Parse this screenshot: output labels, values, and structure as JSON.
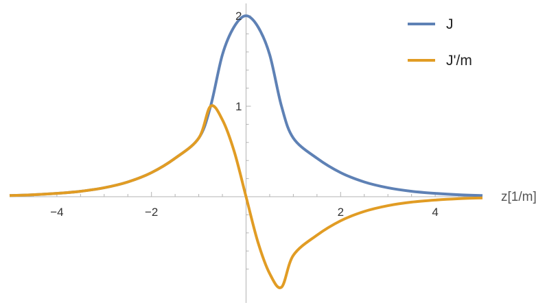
{
  "chart_data": {
    "type": "line",
    "title": "",
    "xlabel": "z[1/m]",
    "ylabel": "",
    "xlim": [
      -5,
      5
    ],
    "ylim": [
      -1.14,
      2.05
    ],
    "x_ticks": [
      -4,
      -2,
      2,
      4
    ],
    "x_tick_labels": [
      "−4",
      "−2",
      "2",
      "4"
    ],
    "y_ticks": [
      1,
      2
    ],
    "y_tick_labels": [
      "1",
      "2"
    ],
    "grid": false,
    "legend_position": "top-right",
    "x": [
      -5.0,
      -4.5,
      -4.0,
      -3.5,
      -3.0,
      -2.5,
      -2.0,
      -1.5,
      -1.0,
      -0.75,
      -0.5,
      -0.25,
      0.0,
      0.25,
      0.5,
      0.75,
      1.0,
      1.5,
      2.0,
      2.5,
      3.0,
      3.5,
      4.0,
      4.5,
      5.0
    ],
    "series": [
      {
        "name": "J",
        "color": "#5e81b5",
        "values": [
          0.013,
          0.022,
          0.037,
          0.06,
          0.099,
          0.163,
          0.266,
          0.425,
          0.648,
          1.0,
          1.57,
          1.88,
          2.0,
          1.88,
          1.57,
          1.0,
          0.648,
          0.425,
          0.266,
          0.163,
          0.099,
          0.06,
          0.037,
          0.022,
          0.013
        ]
      },
      {
        "name": "J'/m",
        "color": "#e19c24",
        "values": [
          0.013,
          0.022,
          0.037,
          0.06,
          0.099,
          0.163,
          0.266,
          0.425,
          0.648,
          1.0,
          0.85,
          0.5,
          0.0,
          -0.5,
          -0.85,
          -1.0,
          -0.648,
          -0.425,
          -0.266,
          -0.163,
          -0.099,
          -0.06,
          -0.037,
          -0.022,
          -0.013
        ]
      }
    ]
  }
}
